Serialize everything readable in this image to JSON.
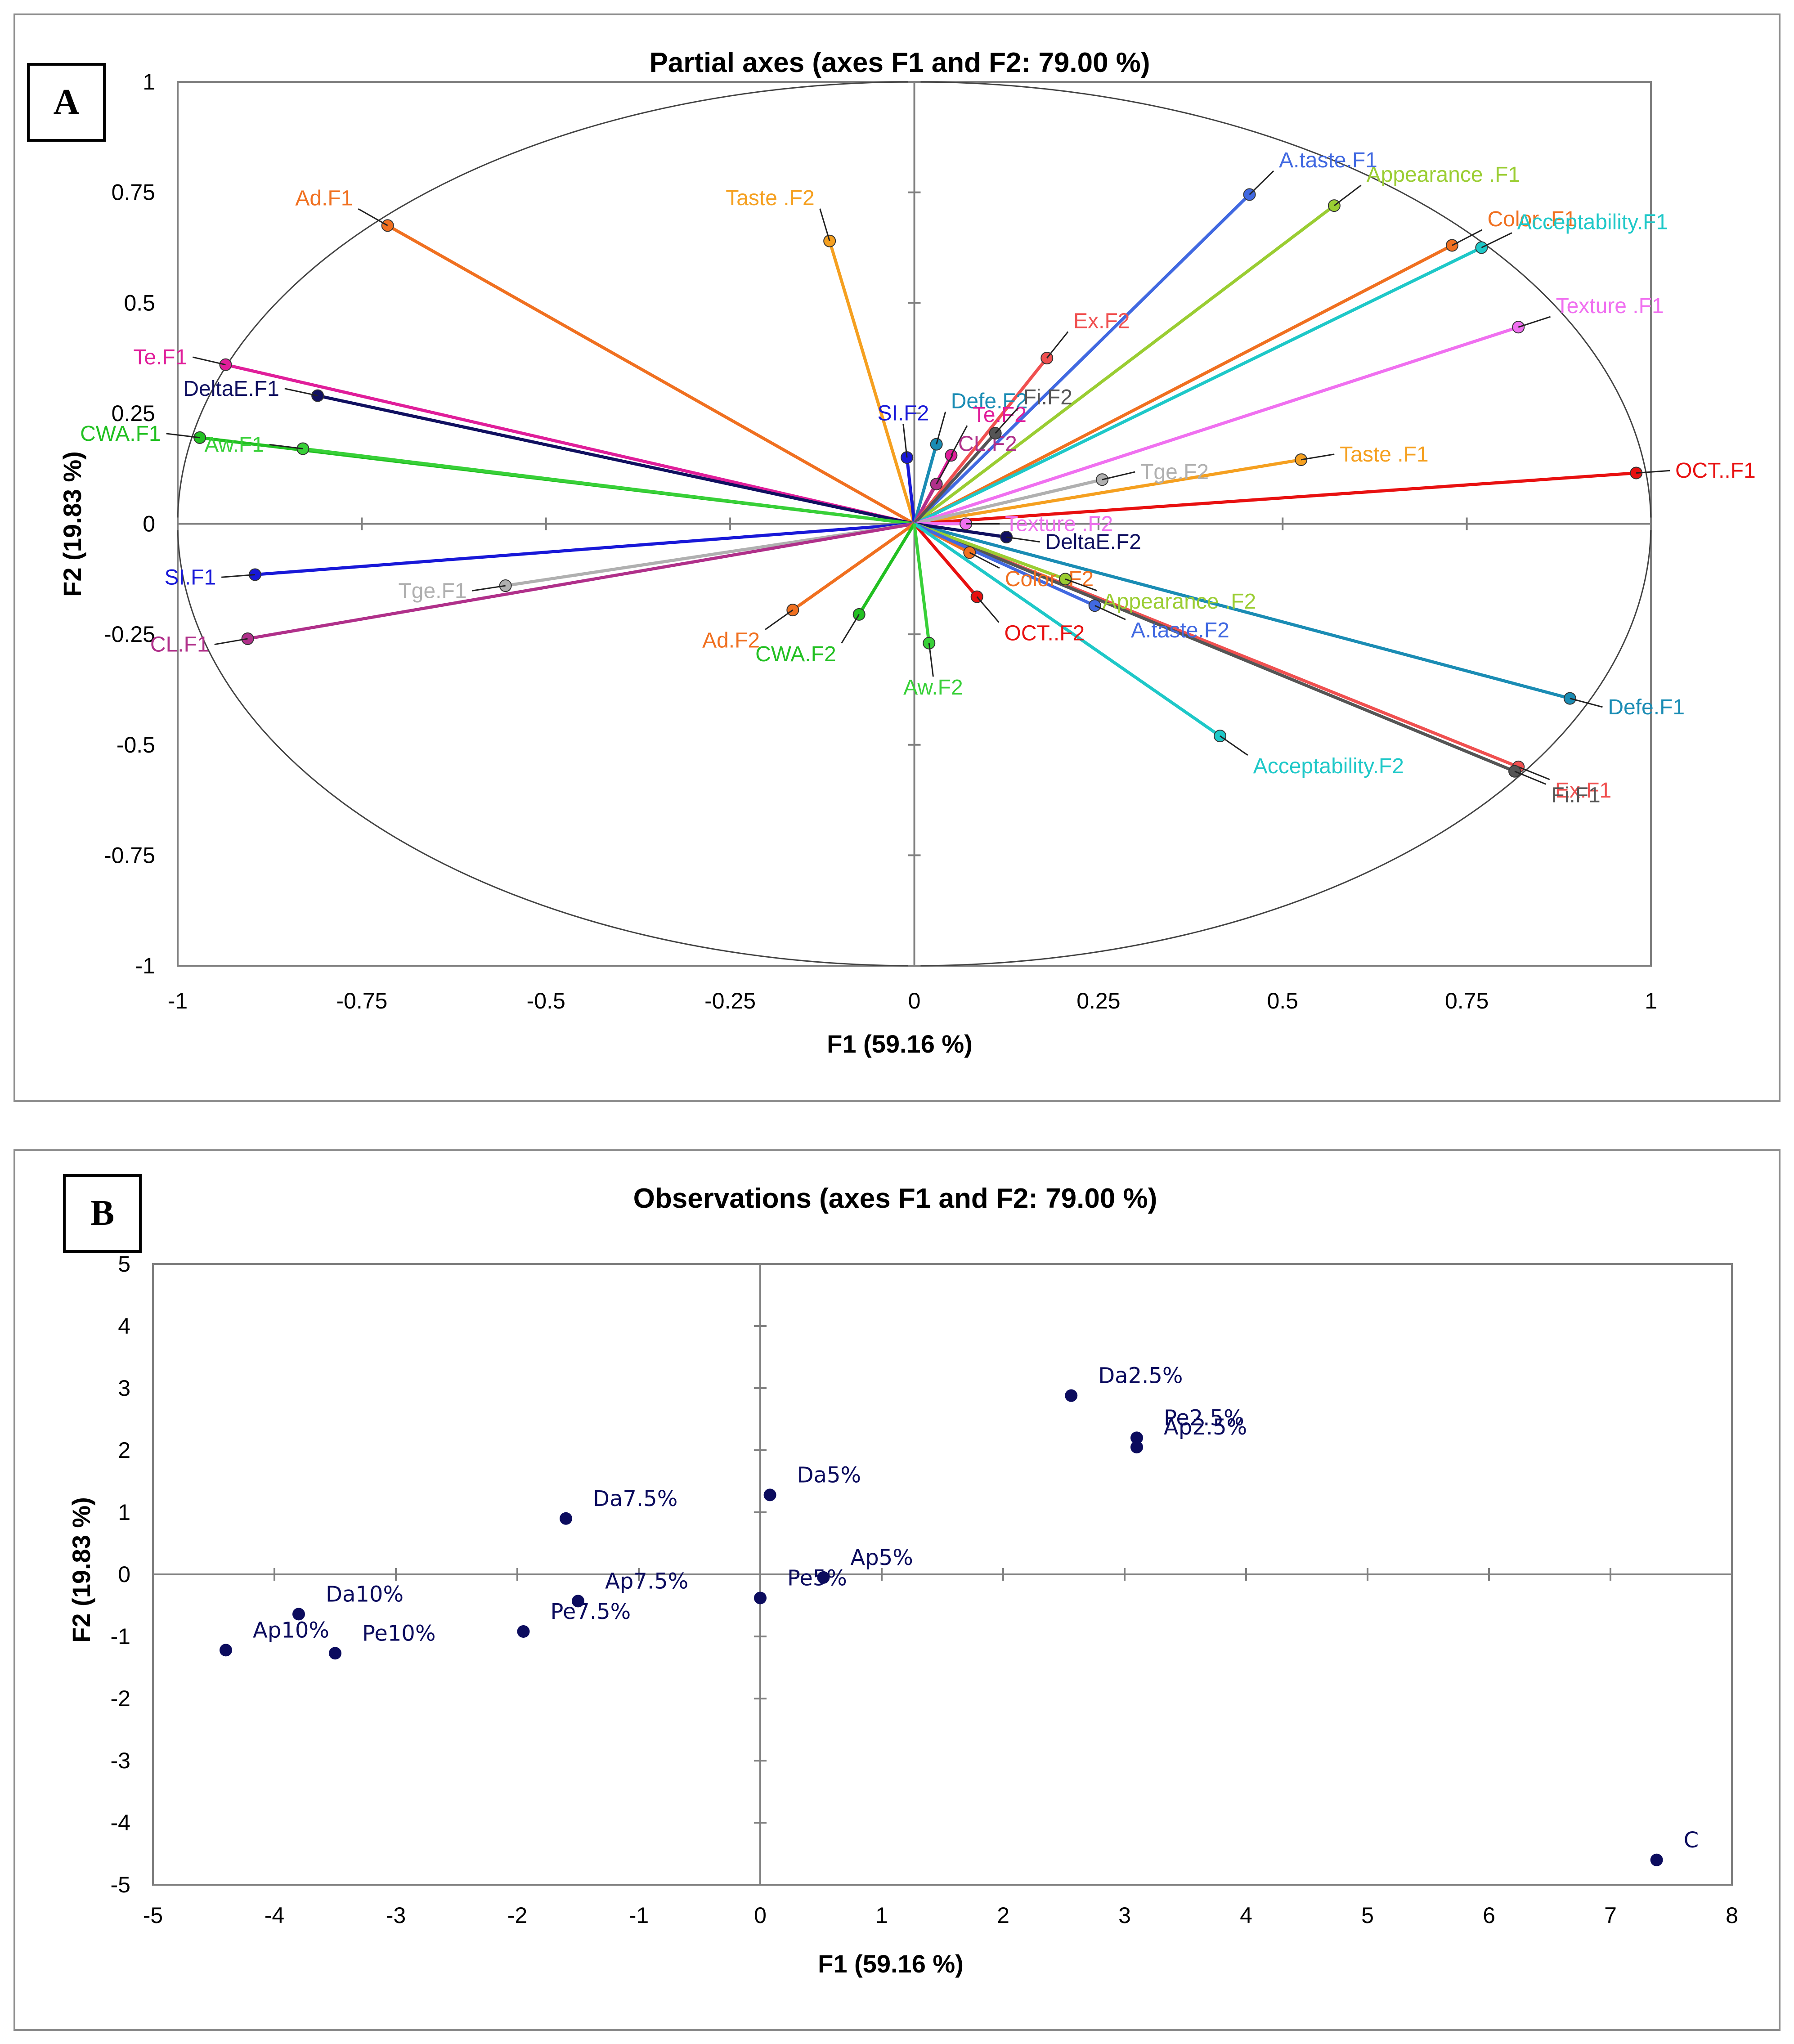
{
  "chart_data": [
    {
      "type": "scatter",
      "subtype": "correlation-circle",
      "panel_label": "A",
      "title": "Partial axes (axes F1 and F2: 79.00 %)",
      "xlabel": "F1 (59.16 %)",
      "ylabel": "F2 (19.83 %)",
      "xlim": [
        -1,
        1
      ],
      "ylim": [
        -1,
        1
      ],
      "xticks": [
        "-1",
        "-0.75",
        "-0.5",
        "-0.25",
        "0",
        "0.25",
        "0.5",
        "0.75",
        "1"
      ],
      "yticks": [
        "1",
        "0.75",
        "0.5",
        "0.25",
        "0",
        "-0.25",
        "-0.5",
        "-0.75",
        "-1"
      ],
      "vectors": [
        {
          "name": "A.taste.F1",
          "x": 0.455,
          "y": 0.745,
          "color": "#4169e1"
        },
        {
          "name": "Appearance .F1",
          "x": 0.57,
          "y": 0.72,
          "color": "#9acd32"
        },
        {
          "name": "Color .F1",
          "x": 0.73,
          "y": 0.63,
          "color": "#f07020"
        },
        {
          "name": "Acceptability.F1",
          "x": 0.77,
          "y": 0.625,
          "color": "#1ec8c8"
        },
        {
          "name": "Texture .F1",
          "x": 0.82,
          "y": 0.445,
          "color": "#f070f0"
        },
        {
          "name": "Taste .F1",
          "x": 0.525,
          "y": 0.145,
          "color": "#f5a020"
        },
        {
          "name": "OCT..F1",
          "x": 0.98,
          "y": 0.115,
          "color": "#e81010"
        },
        {
          "name": "Defe.F1",
          "x": 0.89,
          "y": -0.395,
          "color": "#1a8cb4"
        },
        {
          "name": "Ex.F1",
          "x": 0.82,
          "y": -0.55,
          "color": "#f05050"
        },
        {
          "name": "Fi.F1",
          "x": 0.815,
          "y": -0.56,
          "color": "#555555"
        },
        {
          "name": "Ad.F1",
          "x": -0.715,
          "y": 0.675,
          "color": "#f07020"
        },
        {
          "name": "Te.F1",
          "x": -0.935,
          "y": 0.36,
          "color": "#e01e9a"
        },
        {
          "name": "DeltaE.F1",
          "x": -0.81,
          "y": 0.29,
          "color": "#101060"
        },
        {
          "name": "CWA.F1",
          "x": -0.97,
          "y": 0.195,
          "color": "#22c022"
        },
        {
          "name": "Aw.F1",
          "x": -0.83,
          "y": 0.17,
          "color": "#38d038"
        },
        {
          "name": "SI.F1",
          "x": -0.895,
          "y": -0.115,
          "color": "#1818d8"
        },
        {
          "name": "Tge.F1",
          "x": -0.555,
          "y": -0.14,
          "color": "#b0b0b0"
        },
        {
          "name": "CL.F1",
          "x": -0.905,
          "y": -0.26,
          "color": "#b0308a"
        },
        {
          "name": "Taste .F2",
          "x": -0.115,
          "y": 0.64,
          "color": "#f5a020"
        },
        {
          "name": "SI.F2",
          "x": -0.01,
          "y": 0.15,
          "color": "#1818d8"
        },
        {
          "name": "Defe.F2",
          "x": 0.03,
          "y": 0.18,
          "color": "#1a8cb4"
        },
        {
          "name": "Te.F2",
          "x": 0.05,
          "y": 0.155,
          "color": "#e01e9a"
        },
        {
          "name": "CL.F2",
          "x": 0.03,
          "y": 0.09,
          "color": "#b0308a"
        },
        {
          "name": "Ex.F2",
          "x": 0.18,
          "y": 0.375,
          "color": "#f05050"
        },
        {
          "name": "Fi.F2",
          "x": 0.11,
          "y": 0.205,
          "color": "#555555"
        },
        {
          "name": "Tge.F2",
          "x": 0.255,
          "y": 0.1,
          "color": "#b0b0b0"
        },
        {
          "name": "Texture .F2",
          "x": 0.07,
          "y": 0.0,
          "color": "#f070f0"
        },
        {
          "name": "DeltaE.F2",
          "x": 0.125,
          "y": -0.03,
          "color": "#101060"
        },
        {
          "name": "Color .F2",
          "x": 0.075,
          "y": -0.065,
          "color": "#f07020"
        },
        {
          "name": "Appearance .F2",
          "x": 0.205,
          "y": -0.125,
          "color": "#9acd32"
        },
        {
          "name": "OCT..F2",
          "x": 0.085,
          "y": -0.165,
          "color": "#e81010"
        },
        {
          "name": "A.taste.F2",
          "x": 0.245,
          "y": -0.185,
          "color": "#4169e1"
        },
        {
          "name": "Acceptability.F2",
          "x": 0.415,
          "y": -0.48,
          "color": "#1ec8c8"
        },
        {
          "name": "Ad.F2",
          "x": -0.165,
          "y": -0.195,
          "color": "#f07020"
        },
        {
          "name": "CWA.F2",
          "x": -0.075,
          "y": -0.205,
          "color": "#22c022"
        },
        {
          "name": "Aw.F2",
          "x": 0.02,
          "y": -0.27,
          "color": "#38d038"
        }
      ]
    },
    {
      "type": "scatter",
      "panel_label": "B",
      "title": "Observations (axes F1 and F2: 79.00 %)",
      "xlabel": "F1 (59.16 %)",
      "ylabel": "F2 (19.83 %)",
      "xlim": [
        -5,
        8
      ],
      "ylim": [
        -5,
        5
      ],
      "xticks": [
        "-5",
        "-4",
        "-3",
        "-2",
        "-1",
        "0",
        "1",
        "2",
        "3",
        "4",
        "5",
        "6",
        "7",
        "8"
      ],
      "yticks": [
        "5",
        "4",
        "3",
        "2",
        "1",
        "0",
        "-1",
        "-2",
        "-3",
        "-4",
        "-5"
      ],
      "point_color": "#0c0c5e",
      "points": [
        {
          "label": "Da2.5%",
          "x": 2.56,
          "y": 2.88
        },
        {
          "label": "Pe2.5%",
          "x": 3.1,
          "y": 2.2
        },
        {
          "label": "Ap2.5%",
          "x": 3.1,
          "y": 2.05
        },
        {
          "label": "Da5%",
          "x": 0.08,
          "y": 1.28
        },
        {
          "label": "Ap5%",
          "x": 0.52,
          "y": -0.05
        },
        {
          "label": "Pe5%",
          "x": 0.0,
          "y": -0.38
        },
        {
          "label": "Da7.5%",
          "x": -1.6,
          "y": 0.9
        },
        {
          "label": "Ap7.5%",
          "x": -1.5,
          "y": -0.43
        },
        {
          "label": "Pe7.5%",
          "x": -1.95,
          "y": -0.92
        },
        {
          "label": "Da10%",
          "x": -3.8,
          "y": -0.64
        },
        {
          "label": "Pe10%",
          "x": -3.5,
          "y": -1.27
        },
        {
          "label": "Ap10%",
          "x": -4.4,
          "y": -1.22
        },
        {
          "label": "C",
          "x": 7.38,
          "y": -4.6
        }
      ]
    }
  ]
}
